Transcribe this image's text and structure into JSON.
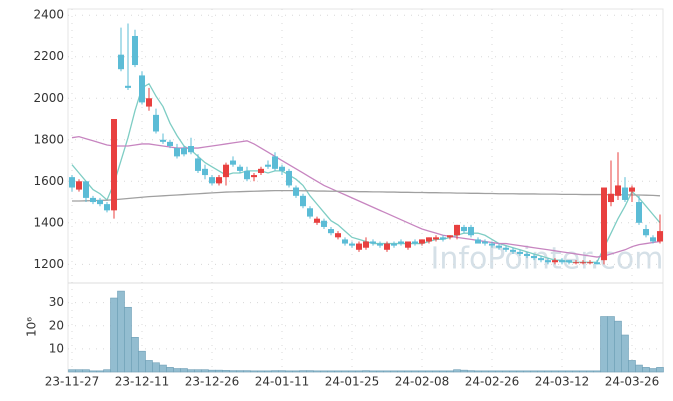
{
  "chart_data": {
    "type": "candlestick",
    "watermark": "InfoPointer.com",
    "categories": [
      "23-11-27",
      null,
      null,
      null,
      null,
      null,
      null,
      null,
      null,
      null,
      "23-12-11",
      null,
      null,
      null,
      null,
      null,
      null,
      null,
      null,
      null,
      "23-12-26",
      null,
      null,
      null,
      null,
      null,
      null,
      null,
      null,
      null,
      "24-01-11",
      null,
      null,
      null,
      null,
      null,
      null,
      null,
      null,
      null,
      "24-01-25",
      null,
      null,
      null,
      null,
      null,
      null,
      null,
      null,
      null,
      "24-02-08",
      null,
      null,
      null,
      null,
      null,
      null,
      null,
      null,
      null,
      "24-02-26",
      null,
      null,
      null,
      null,
      null,
      null,
      null,
      null,
      null,
      "24-03-12",
      null,
      null,
      null,
      null,
      null,
      null,
      null,
      null,
      null,
      "24-03-26",
      null,
      null,
      null,
      null
    ],
    "open": [
      1620,
      1560,
      1600,
      1520,
      1510,
      1490,
      1460,
      2210,
      2060,
      2300,
      2110,
      1960,
      1920,
      1800,
      1790,
      1760,
      1760,
      1770,
      1710,
      1660,
      1620,
      1590,
      1620,
      1700,
      1670,
      1650,
      1620,
      1640,
      1680,
      1720,
      1670,
      1650,
      1570,
      1530,
      1470,
      1400,
      1410,
      1370,
      1330,
      1320,
      1300,
      1270,
      1280,
      1310,
      1300,
      1270,
      1300,
      1310,
      1280,
      1310,
      1300,
      1310,
      1320,
      1330,
      1330,
      1340,
      1380,
      1380,
      1320,
      1310,
      1300,
      1290,
      1280,
      1270,
      1260,
      1250,
      1240,
      1230,
      1220,
      1210,
      1220,
      1220,
      1210,
      1210,
      1210,
      1210,
      1220,
      1500,
      1530,
      1570,
      1550,
      1500,
      1370,
      1330,
      1310
    ],
    "high": [
      1630,
      1610,
      1600,
      1530,
      1520,
      1500,
      1900,
      2340,
      2360,
      2330,
      2130,
      2050,
      1950,
      1830,
      1800,
      1780,
      1770,
      1810,
      1730,
      1680,
      1630,
      1630,
      1690,
      1720,
      1680,
      1670,
      1640,
      1670,
      1700,
      1740,
      1680,
      1660,
      1580,
      1540,
      1480,
      1430,
      1420,
      1380,
      1360,
      1330,
      1310,
      1310,
      1330,
      1320,
      1310,
      1310,
      1310,
      1320,
      1310,
      1320,
      1320,
      1330,
      1340,
      1340,
      1340,
      1390,
      1390,
      1390,
      1330,
      1320,
      1310,
      1300,
      1290,
      1280,
      1270,
      1260,
      1250,
      1240,
      1230,
      1230,
      1230,
      1220,
      1220,
      1220,
      1220,
      1220,
      1570,
      1700,
      1740,
      1620,
      1580,
      1530,
      1390,
      1340,
      1440
    ],
    "low": [
      1550,
      1550,
      1500,
      1490,
      1480,
      1450,
      1420,
      2130,
      2040,
      2150,
      1970,
      1940,
      1830,
      1780,
      1760,
      1710,
      1720,
      1730,
      1640,
      1610,
      1580,
      1580,
      1580,
      1670,
      1640,
      1600,
      1600,
      1630,
      1660,
      1650,
      1630,
      1570,
      1520,
      1470,
      1420,
      1390,
      1370,
      1340,
      1320,
      1290,
      1280,
      1260,
      1270,
      1290,
      1280,
      1260,
      1280,
      1290,
      1270,
      1290,
      1290,
      1300,
      1310,
      1310,
      1320,
      1320,
      1350,
      1330,
      1300,
      1290,
      1280,
      1270,
      1260,
      1250,
      1240,
      1230,
      1220,
      1210,
      1200,
      1200,
      1200,
      1200,
      1200,
      1200,
      1200,
      1200,
      1200,
      1480,
      1510,
      1500,
      1500,
      1390,
      1330,
      1300,
      1300
    ],
    "close": [
      1570,
      1600,
      1520,
      1500,
      1490,
      1460,
      1900,
      2140,
      2050,
      2160,
      1980,
      2000,
      1840,
      1790,
      1770,
      1720,
      1730,
      1740,
      1650,
      1630,
      1590,
      1620,
      1680,
      1680,
      1650,
      1610,
      1630,
      1660,
      1670,
      1660,
      1650,
      1580,
      1530,
      1480,
      1430,
      1420,
      1380,
      1350,
      1350,
      1300,
      1290,
      1300,
      1310,
      1300,
      1290,
      1300,
      1290,
      1300,
      1310,
      1300,
      1320,
      1330,
      1330,
      1320,
      1340,
      1390,
      1360,
      1340,
      1300,
      1300,
      1290,
      1280,
      1270,
      1260,
      1250,
      1240,
      1230,
      1220,
      1210,
      1220,
      1210,
      1210,
      1210,
      1210,
      1210,
      1200,
      1570,
      1540,
      1580,
      1510,
      1570,
      1400,
      1340,
      1310,
      1360
    ],
    "up_color": "#e8403f",
    "down_color": "#5bbcd6",
    "ylim": [
      1110,
      2430
    ],
    "yticks": [
      1200,
      1400,
      1600,
      1800,
      2000,
      2200,
      2400
    ],
    "moving_averages": [
      {
        "color": "#7ecdc4",
        "values": [
          1680,
          1640,
          1600,
          1560,
          1540,
          1510,
          1590,
          1700,
          1810,
          1940,
          2050,
          2070,
          2010,
          1960,
          1880,
          1820,
          1770,
          1750,
          1720,
          1690,
          1670,
          1650,
          1630,
          1640,
          1640,
          1650,
          1650,
          1650,
          1640,
          1650,
          1650,
          1630,
          1610,
          1580,
          1530,
          1490,
          1450,
          1410,
          1390,
          1360,
          1330,
          1320,
          1310,
          1300,
          1300,
          1300,
          1300,
          1300,
          1300,
          1300,
          1300,
          1310,
          1320,
          1320,
          1330,
          1340,
          1350,
          1350,
          1350,
          1340,
          1320,
          1300,
          1290,
          1280,
          1270,
          1260,
          1250,
          1240,
          1230,
          1220,
          1220,
          1210,
          1210,
          1210,
          1210,
          1210,
          1280,
          1350,
          1420,
          1480,
          1550,
          1520,
          1480,
          1440,
          1400
        ]
      },
      {
        "color": "#c785c0",
        "values": [
          1810,
          1815,
          1805,
          1795,
          1785,
          1775,
          1770,
          1770,
          1770,
          1775,
          1780,
          1780,
          1775,
          1770,
          1765,
          1760,
          1760,
          1760,
          1760,
          1765,
          1770,
          1775,
          1780,
          1785,
          1790,
          1795,
          1780,
          1760,
          1740,
          1720,
          1700,
          1680,
          1660,
          1640,
          1620,
          1600,
          1580,
          1565,
          1550,
          1535,
          1520,
          1505,
          1490,
          1475,
          1460,
          1445,
          1430,
          1415,
          1400,
          1385,
          1370,
          1360,
          1350,
          1340,
          1335,
          1330,
          1325,
          1320,
          1315,
          1310,
          1305,
          1300,
          1300,
          1295,
          1290,
          1285,
          1280,
          1275,
          1270,
          1265,
          1260,
          1255,
          1250,
          1245,
          1240,
          1235,
          1240,
          1250,
          1260,
          1270,
          1285,
          1295,
          1300,
          1305,
          1310
        ]
      },
      {
        "color": "#a0a0a0",
        "values": [
          1505,
          1505,
          1506,
          1507,
          1508,
          1509,
          1511,
          1514,
          1517,
          1520,
          1523,
          1526,
          1528,
          1530,
          1532,
          1534,
          1536,
          1538,
          1540,
          1542,
          1544,
          1546,
          1548,
          1549,
          1550,
          1551,
          1552,
          1553,
          1554,
          1555,
          1555,
          1555,
          1555,
          1554,
          1554,
          1553,
          1553,
          1552,
          1552,
          1551,
          1551,
          1550,
          1550,
          1549,
          1549,
          1548,
          1548,
          1547,
          1547,
          1546,
          1546,
          1545,
          1545,
          1544,
          1544,
          1543,
          1543,
          1542,
          1542,
          1541,
          1541,
          1540,
          1540,
          1540,
          1539,
          1539,
          1539,
          1538,
          1538,
          1538,
          1537,
          1537,
          1537,
          1536,
          1536,
          1536,
          1536,
          1535,
          1535,
          1535,
          1534,
          1534,
          1533,
          1532,
          1530
        ]
      }
    ],
    "volume": {
      "y_label": "10⁶",
      "color": "#93bdd0",
      "ylim": [
        0,
        38.5
      ],
      "yticks": [
        10,
        20,
        30
      ],
      "values": [
        1,
        1,
        1,
        0.5,
        0.5,
        1,
        32,
        35,
        28,
        15,
        9,
        5,
        4,
        3,
        2,
        1.5,
        1.5,
        1,
        1,
        1,
        0.8,
        0.8,
        0.7,
        0.6,
        0.6,
        0.6,
        0.5,
        0.5,
        0.5,
        0.6,
        0.6,
        0.5,
        0.5,
        0.6,
        0.6,
        0.5,
        0.5,
        0.5,
        0.5,
        0.5,
        0.5,
        0.5,
        0.6,
        0.5,
        0.5,
        0.5,
        0.5,
        0.5,
        0.5,
        0.5,
        0.5,
        0.5,
        0.5,
        0.5,
        0.5,
        1,
        0.8,
        0.6,
        0.5,
        0.5,
        0.5,
        0.5,
        0.5,
        0.5,
        0.5,
        0.5,
        0.5,
        0.5,
        0.5,
        0.5,
        0.5,
        0.5,
        0.5,
        0.5,
        0.5,
        0.5,
        24,
        24,
        22,
        16,
        5,
        3,
        2,
        1.5,
        2
      ]
    }
  }
}
